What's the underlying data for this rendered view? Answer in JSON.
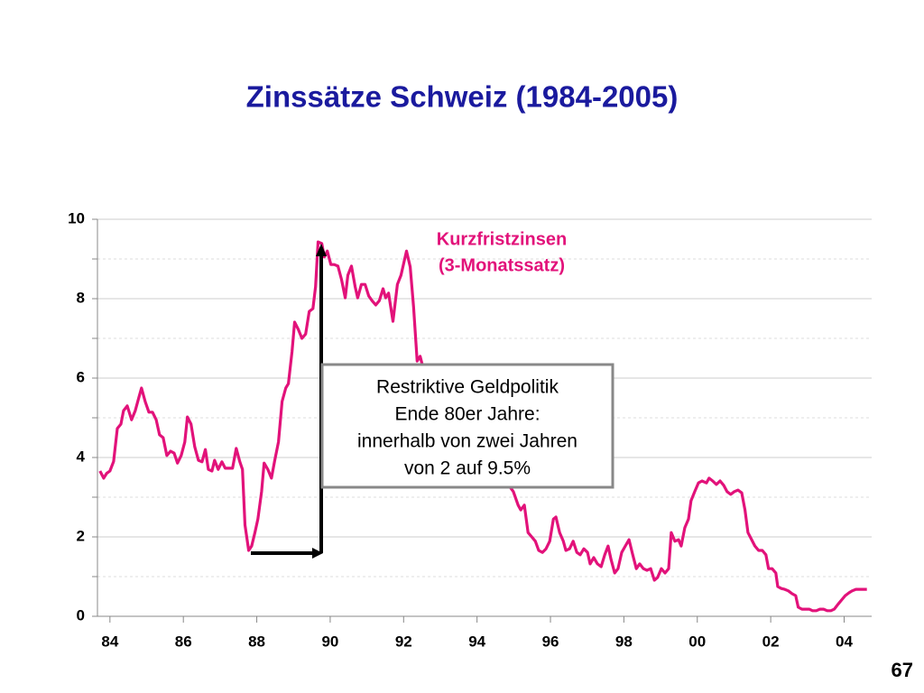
{
  "chart_data": {
    "type": "line",
    "title": "Zinssätze Schweiz (1984-2005)",
    "page_number": "67",
    "ylim": [
      0,
      10
    ],
    "yticks": [
      0,
      2,
      4,
      6,
      8,
      10
    ],
    "yminor_ticks": [
      1,
      3,
      5,
      7,
      9
    ],
    "xlim": [
      1983.66,
      2004.75
    ],
    "xticks": [
      {
        "value": 1984,
        "label": "84"
      },
      {
        "value": 1986,
        "label": "86"
      },
      {
        "value": 1988,
        "label": "88"
      },
      {
        "value": 1990,
        "label": "90"
      },
      {
        "value": 1992,
        "label": "92"
      },
      {
        "value": 1994,
        "label": "94"
      },
      {
        "value": 1996,
        "label": "96"
      },
      {
        "value": 1998,
        "label": "98"
      },
      {
        "value": 2000,
        "label": "00"
      },
      {
        "value": 2002,
        "label": "02"
      },
      {
        "value": 2004,
        "label": "04"
      }
    ],
    "grid": true,
    "series_label": [
      "Kurzfristzinsen",
      "(3-Monatssatz)"
    ],
    "annotation": [
      "Restriktive Geldpolitik",
      "Ende 80er Jahre:",
      "innerhalb von zwei Jahren",
      "von 2 auf 9.5%"
    ],
    "series": [
      {
        "name": "Kurzfristzinsen (3-Monatssatz)",
        "color": "#e2127a",
        "x": [
          1983.73,
          1983.83,
          1983.91,
          1984.0,
          1984.1,
          1984.2,
          1984.3,
          1984.37,
          1984.47,
          1984.59,
          1984.69,
          1984.79,
          1984.86,
          1984.96,
          1985.06,
          1985.16,
          1985.26,
          1985.35,
          1985.45,
          1985.55,
          1985.65,
          1985.75,
          1985.84,
          1985.94,
          1986.04,
          1986.11,
          1986.21,
          1986.31,
          1986.41,
          1986.51,
          1986.6,
          1986.68,
          1986.78,
          1986.85,
          1986.95,
          1987.05,
          1987.14,
          1987.24,
          1987.34,
          1987.44,
          1987.54,
          1987.61,
          1987.68,
          1987.78,
          1987.86,
          1987.95,
          1988.03,
          1988.13,
          1988.2,
          1988.3,
          1988.4,
          1988.49,
          1988.59,
          1988.69,
          1988.79,
          1988.86,
          1988.96,
          1989.03,
          1989.13,
          1989.23,
          1989.33,
          1989.43,
          1989.53,
          1989.6,
          1989.67,
          1989.77,
          1989.84,
          1989.92,
          1990.02,
          1990.11,
          1990.21,
          1990.31,
          1990.41,
          1990.48,
          1990.58,
          1990.68,
          1990.75,
          1990.85,
          1990.95,
          1991.05,
          1991.14,
          1991.24,
          1991.34,
          1991.44,
          1991.51,
          1991.59,
          1991.71,
          1991.83,
          1991.93,
          1992.08,
          1992.18,
          1992.27,
          1992.37,
          1992.45,
          1992.52,
          1994.99,
          1995.12,
          1995.19,
          1995.29,
          1995.39,
          1995.49,
          1995.59,
          1995.68,
          1995.78,
          1995.88,
          1995.98,
          1996.08,
          1996.15,
          1996.25,
          1996.35,
          1996.42,
          1996.52,
          1996.62,
          1996.72,
          1996.81,
          1996.91,
          1997.01,
          1997.08,
          1997.18,
          1997.28,
          1997.38,
          1997.48,
          1997.57,
          1997.65,
          1997.75,
          1997.84,
          1997.94,
          1998.04,
          1998.14,
          1998.24,
          1998.34,
          1998.43,
          1998.53,
          1998.63,
          1998.73,
          1998.83,
          1998.92,
          1999.02,
          1999.12,
          1999.22,
          1999.29,
          1999.39,
          1999.49,
          1999.56,
          1999.66,
          1999.76,
          1999.83,
          1999.93,
          2000.03,
          2000.13,
          2000.25,
          2000.32,
          2000.42,
          2000.52,
          2000.62,
          2000.72,
          2000.81,
          2000.91,
          2001.01,
          2001.11,
          2001.21,
          2001.3,
          2001.38,
          2001.48,
          2001.57,
          2001.67,
          2001.77,
          2001.87,
          2001.94,
          2002.04,
          2002.14,
          2002.19,
          2002.29,
          2002.38,
          2002.48,
          2002.58,
          2002.68,
          2002.75,
          2002.85,
          2002.95,
          2003.05,
          2003.14,
          2003.24,
          2003.34,
          2003.44,
          2003.54,
          2003.64,
          2003.73,
          2003.83,
          2003.93,
          2004.03,
          2004.13,
          2004.22,
          2004.32,
          2004.42,
          2004.52,
          2004.62
        ],
        "values": [
          3.66,
          3.48,
          3.6,
          3.66,
          3.9,
          4.73,
          4.84,
          5.18,
          5.3,
          4.95,
          5.18,
          5.52,
          5.75,
          5.41,
          5.14,
          5.14,
          4.95,
          4.57,
          4.5,
          4.05,
          4.16,
          4.11,
          3.86,
          4.05,
          4.39,
          5.02,
          4.84,
          4.27,
          3.93,
          3.89,
          4.2,
          3.7,
          3.66,
          3.93,
          3.7,
          3.89,
          3.73,
          3.73,
          3.73,
          4.23,
          3.89,
          3.7,
          2.3,
          1.66,
          1.77,
          2.11,
          2.45,
          3.14,
          3.86,
          3.7,
          3.48,
          3.93,
          4.39,
          5.41,
          5.75,
          5.86,
          6.66,
          7.41,
          7.23,
          7.0,
          7.11,
          7.68,
          7.75,
          8.3,
          9.43,
          9.39,
          9.05,
          9.2,
          8.86,
          8.86,
          8.82,
          8.48,
          8.02,
          8.59,
          8.82,
          8.3,
          8.02,
          8.36,
          8.36,
          8.07,
          7.95,
          7.84,
          7.95,
          8.25,
          8.02,
          8.14,
          7.43,
          8.36,
          8.59,
          9.2,
          8.8,
          7.8,
          6.43,
          6.55,
          6.3,
          3.14,
          2.8,
          2.68,
          2.8,
          2.11,
          2.0,
          1.89,
          1.66,
          1.61,
          1.7,
          1.89,
          2.45,
          2.5,
          2.11,
          1.89,
          1.66,
          1.7,
          1.89,
          1.61,
          1.55,
          1.7,
          1.61,
          1.32,
          1.48,
          1.32,
          1.25,
          1.55,
          1.77,
          1.43,
          1.09,
          1.2,
          1.61,
          1.77,
          1.93,
          1.55,
          1.2,
          1.32,
          1.2,
          1.16,
          1.2,
          0.91,
          0.98,
          1.2,
          1.09,
          1.2,
          2.11,
          1.89,
          1.93,
          1.77,
          2.23,
          2.45,
          2.91,
          3.14,
          3.36,
          3.41,
          3.36,
          3.48,
          3.41,
          3.32,
          3.41,
          3.3,
          3.14,
          3.07,
          3.14,
          3.18,
          3.11,
          2.68,
          2.11,
          1.93,
          1.77,
          1.66,
          1.66,
          1.55,
          1.2,
          1.2,
          1.09,
          0.75,
          0.7,
          0.68,
          0.64,
          0.57,
          0.52,
          0.23,
          0.18,
          0.18,
          0.18,
          0.14,
          0.14,
          0.18,
          0.18,
          0.14,
          0.14,
          0.18,
          0.3,
          0.41,
          0.52,
          0.59,
          0.64,
          0.68,
          0.68,
          0.68,
          0.68
        ]
      }
    ]
  }
}
